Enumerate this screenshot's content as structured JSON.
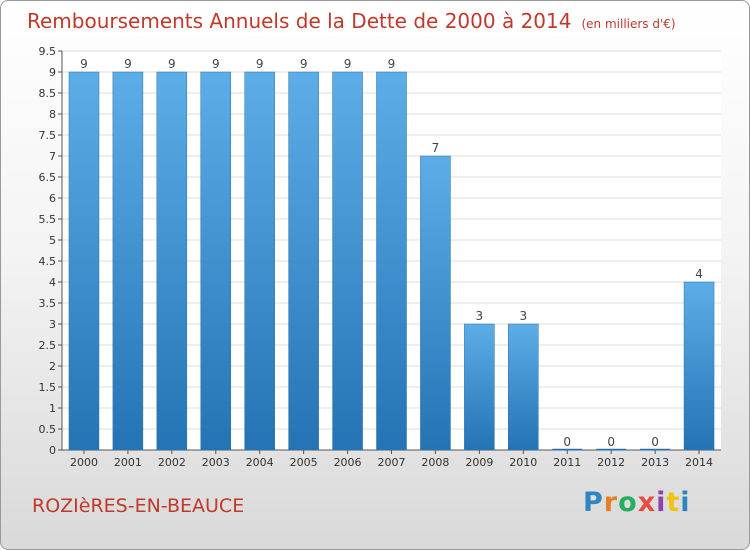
{
  "chart_data": {
    "type": "bar",
    "title": "Remboursements Annuels de la Dette de 2000 à 2014",
    "subtitle": "(en milliers d'€)",
    "categories": [
      "2000",
      "2001",
      "2002",
      "2003",
      "2004",
      "2005",
      "2006",
      "2007",
      "2008",
      "2009",
      "2010",
      "2011",
      "2012",
      "2013",
      "2014"
    ],
    "values": [
      9,
      9,
      9,
      9,
      9,
      9,
      9,
      9,
      7,
      3,
      3,
      0,
      0,
      0,
      4
    ],
    "data_labels": [
      "9",
      "9",
      "9",
      "9",
      "9",
      "9",
      "9",
      "9",
      "7",
      "3",
      "3",
      "0",
      "0",
      "0",
      "4"
    ],
    "yticks": [
      "0",
      "0.5",
      "1",
      "1.5",
      "2",
      "2.5",
      "3",
      "3.5",
      "4",
      "4.5",
      "5",
      "5.5",
      "6",
      "6.5",
      "7",
      "7.5",
      "8",
      "8.5",
      "9",
      "9.5"
    ],
    "ylim": [
      0,
      9.5
    ],
    "grid": true,
    "bar_color": "#3a8fd6"
  },
  "footer": {
    "place": "ROZIèRES-EN-BEAUCE"
  },
  "logo": {
    "letters": [
      "P",
      "r",
      "o",
      "x",
      "i",
      "t",
      "i"
    ],
    "colors": [
      "#2e86c1",
      "#e67e22",
      "#27ae60",
      "#e74c3c",
      "#8e44ad",
      "#f1c40f",
      "#2e86c1"
    ]
  }
}
